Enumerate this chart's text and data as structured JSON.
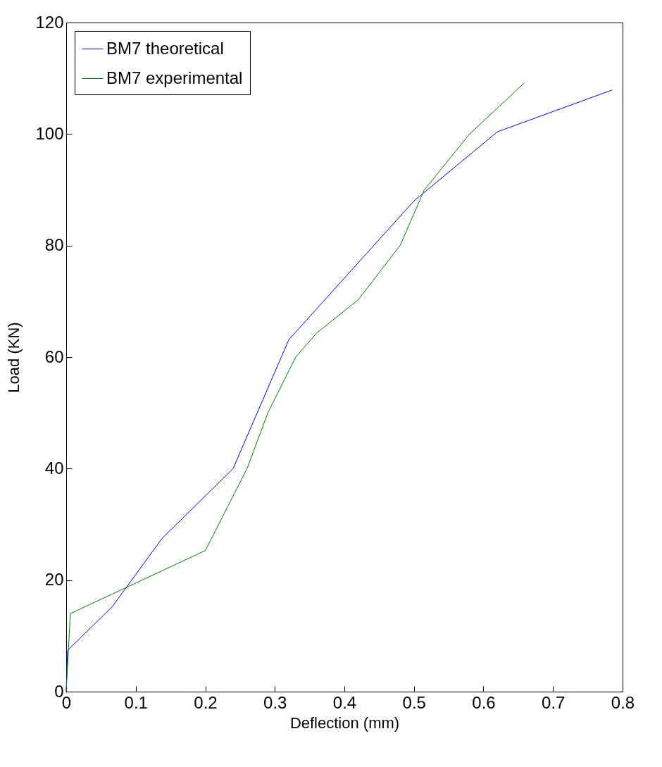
{
  "chart_data": {
    "type": "line",
    "xlabel": "Deflection (mm)",
    "ylabel": "Load (KN)",
    "xlim": [
      0,
      0.8
    ],
    "xticks": [
      0,
      0.1,
      0.2,
      0.3,
      0.4,
      0.5,
      0.6,
      0.7,
      0.8
    ],
    "ylim": [
      0,
      120
    ],
    "yticks": [
      0,
      20,
      40,
      60,
      80,
      100,
      120
    ],
    "grid": false,
    "legend": "top left",
    "line_style": "solid",
    "marker": "none",
    "series": [
      {
        "name": "BM7 theoretical",
        "color": "#0000ff",
        "x": [
          0,
          0.002,
          0.066,
          0.138,
          0.24,
          0.32,
          0.5,
          0.62,
          0.785
        ],
        "values": [
          0,
          7.4,
          15.2,
          27.5,
          40,
          63.1,
          88,
          100.4,
          107.9
        ]
      },
      {
        "name": "BM7 experimental",
        "color": "#008000",
        "x": [
          0,
          0.006,
          0.2,
          0.26,
          0.29,
          0.33,
          0.36,
          0.42,
          0.48,
          0.515,
          0.58,
          0.659
        ],
        "values": [
          0,
          14,
          25.3,
          40,
          50,
          60,
          64.3,
          70.3,
          80,
          90,
          100,
          109.2
        ]
      }
    ]
  }
}
